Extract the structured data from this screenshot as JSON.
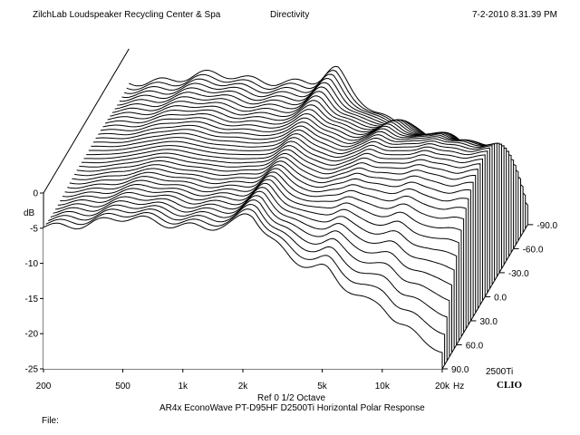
{
  "header": {
    "company": "ZilchLab Loudspeaker Recycling Center & Spa",
    "window_title": "Directivity",
    "timestamp": "7-2-2010 8.31.39 PM"
  },
  "footer": {
    "ref_line": "Ref 0   1/2 Octave",
    "caption": "AR4x EconoWave PT-D95HF D2500Ti Horizontal Polar Response",
    "file_label": "File:"
  },
  "brand": {
    "logo": "CLIO",
    "model_tag": "2500Ti"
  },
  "chart_data": {
    "type": "waterfall",
    "title": "Directivity",
    "subtitle": "AR4x EconoWave PT-D95HF D2500Ti Horizontal Polar Response",
    "smoothing": "1/2 Octave",
    "reference": "Ref 0",
    "x_unit": "Hz",
    "y_unit": "dB",
    "x_scale": "log",
    "xlim": [
      200,
      20000
    ],
    "ylim": [
      -25,
      0
    ],
    "x_tick_values": [
      200,
      500,
      1000,
      2000,
      5000,
      10000,
      20000
    ],
    "x_tick_labels": [
      "200",
      "500",
      "1k",
      "2k",
      "5k",
      "10k",
      "20k"
    ],
    "y_tick_values": [
      0,
      -5,
      -10,
      -15,
      -20,
      -25
    ],
    "y_tick_labels": [
      "0",
      "-5",
      "-10",
      "-15",
      "-20",
      "-25"
    ],
    "z_tick_values": [
      -90,
      -60,
      -30,
      0,
      30,
      60,
      90
    ],
    "z_tick_labels": [
      "-90.0",
      "-60.0",
      "-30.0",
      "0.0",
      "30.0",
      "60.0",
      "90.0"
    ],
    "angle_step": 5,
    "angle_range": [
      -90,
      90
    ],
    "colors": {
      "trace": "#000000",
      "fill": "#ffffff",
      "background": "#ffffff"
    }
  }
}
